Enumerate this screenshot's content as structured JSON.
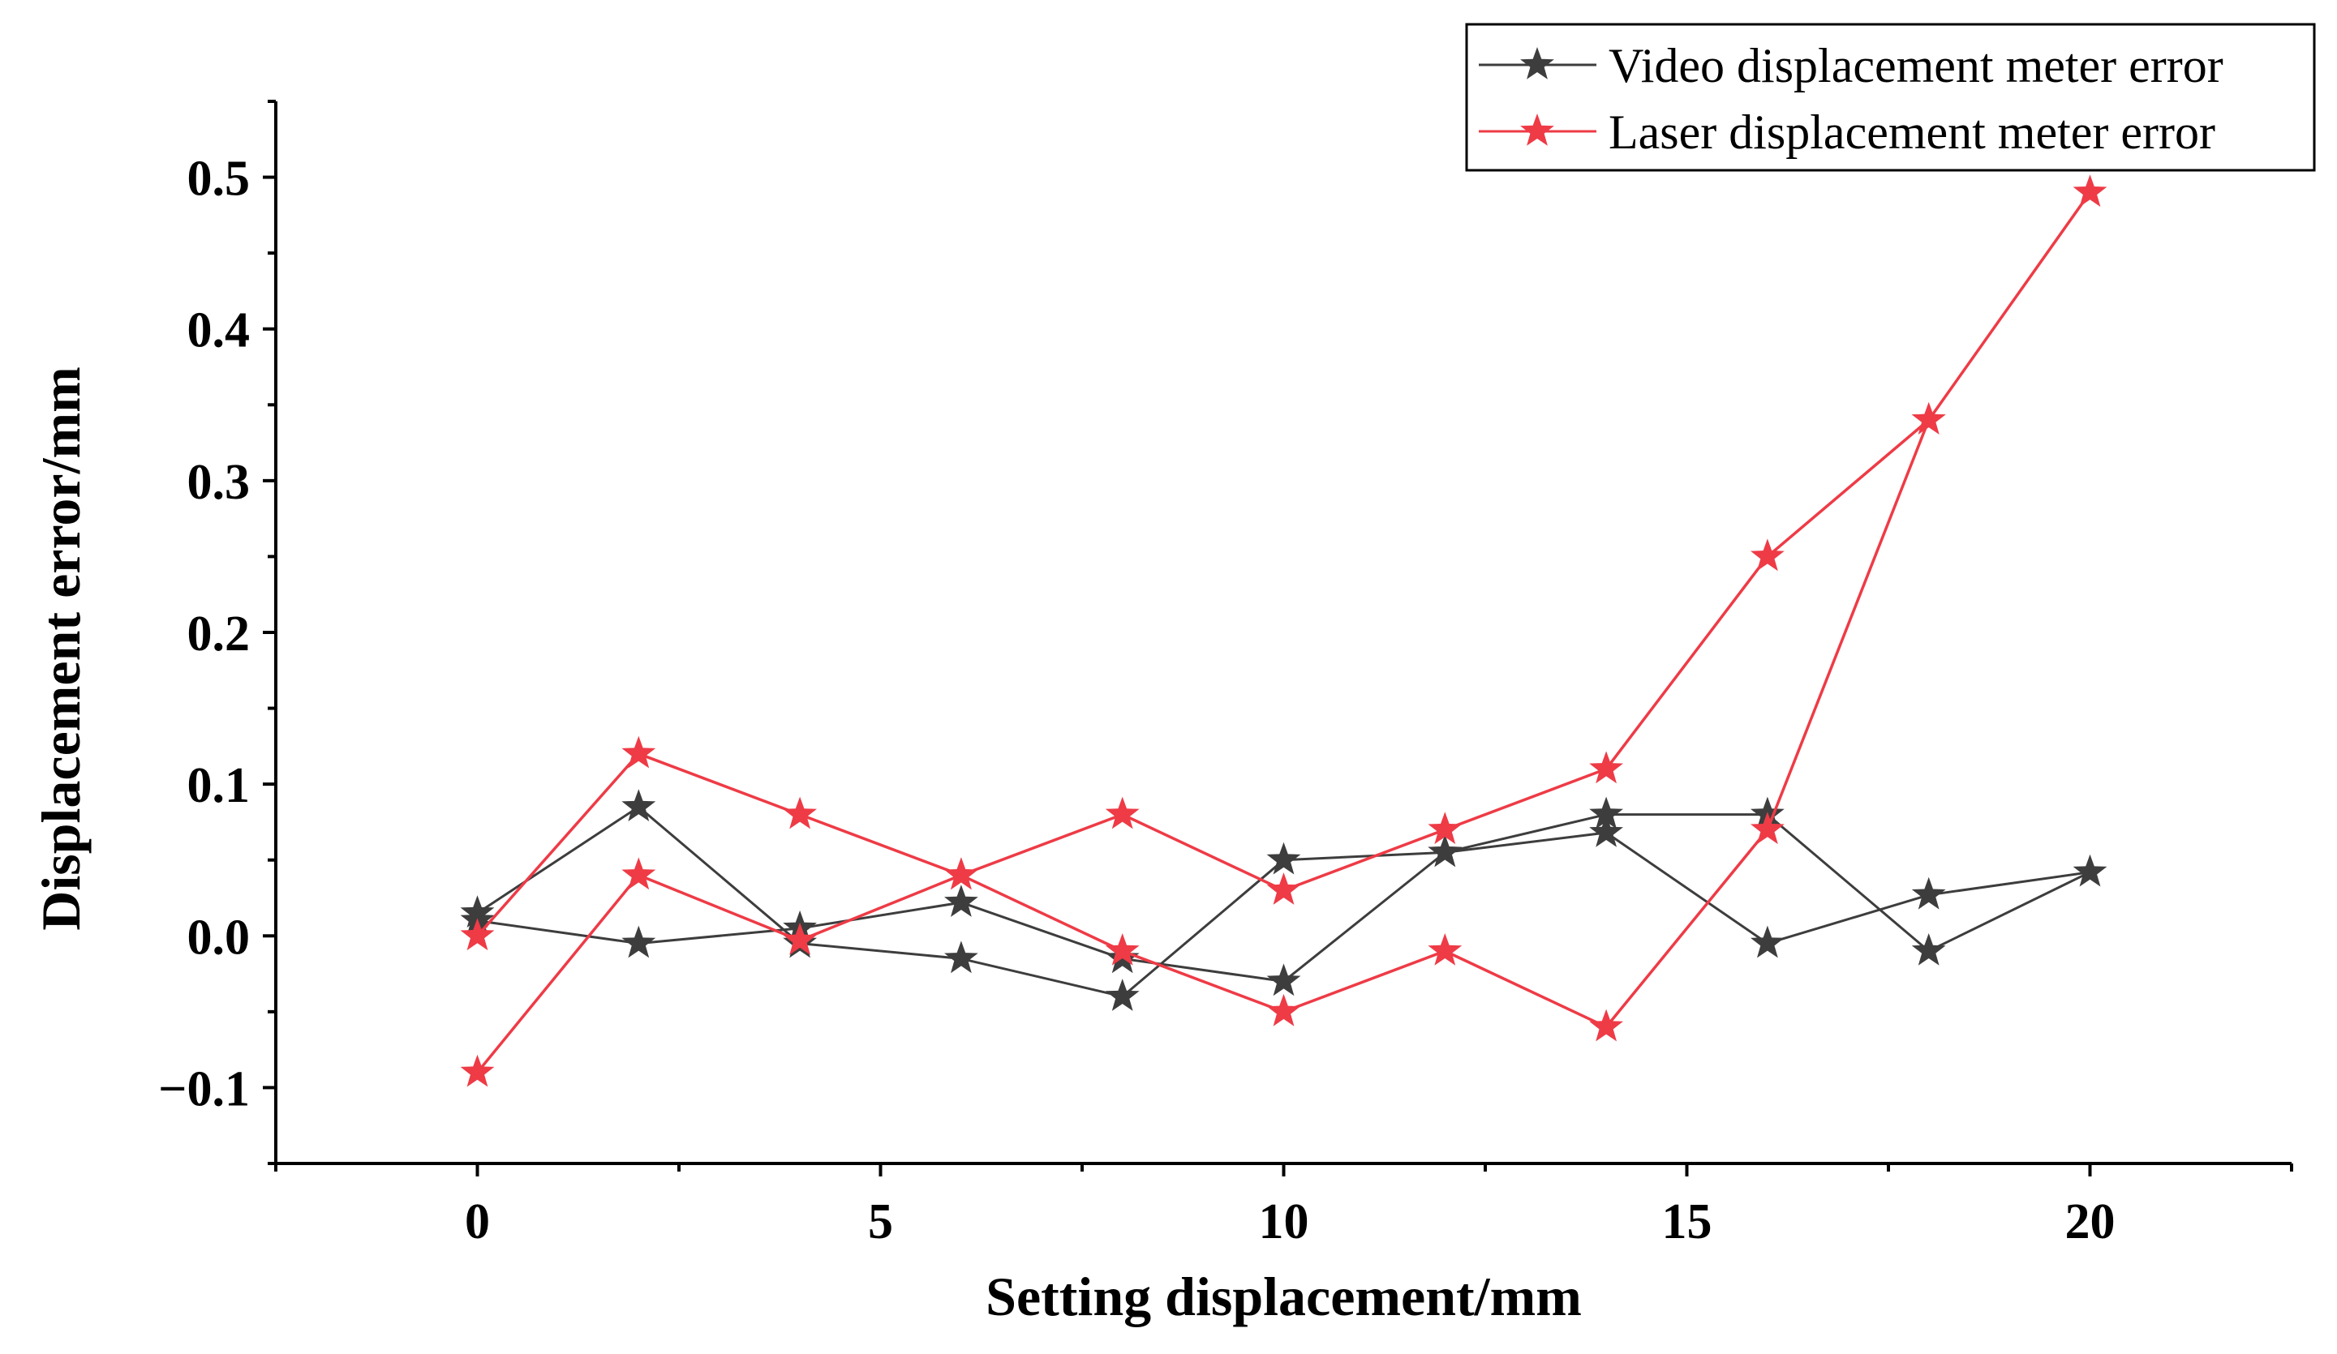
{
  "chart_data": {
    "type": "line",
    "xlabel": "Setting displacement/mm",
    "ylabel": "Displacement error/mm",
    "xlim": [
      -2.5,
      22.5
    ],
    "ylim": [
      -0.15,
      0.55
    ],
    "x_ticks": [
      0,
      5,
      10,
      15,
      20
    ],
    "x_tick_labels": [
      "0",
      "5",
      "10",
      "15",
      "20"
    ],
    "y_ticks": [
      -0.1,
      0.0,
      0.1,
      0.2,
      0.3,
      0.4,
      0.5
    ],
    "y_tick_labels": [
      "−0.1",
      "0.0",
      "0.1",
      "0.2",
      "0.3",
      "0.4",
      "0.5"
    ],
    "grid": false,
    "legend_position": "top-right",
    "series": [
      {
        "name": "Video displacement meter error",
        "color": "#3d3d3d",
        "marker": "star",
        "x": [
          0,
          2,
          4,
          6,
          8,
          10,
          12,
          14,
          16,
          18,
          20,
          18,
          16,
          14,
          12,
          10,
          8,
          6,
          4,
          2,
          0
        ],
        "y": [
          0.015,
          0.085,
          -0.005,
          -0.015,
          -0.04,
          0.05,
          0.055,
          0.08,
          0.08,
          -0.01,
          0.042,
          0.027,
          -0.005,
          0.068,
          0.055,
          -0.03,
          -0.015,
          0.022,
          0.005,
          -0.005,
          0.01
        ]
      },
      {
        "name": "Laser displacement meter error",
        "color": "#ee3b46",
        "marker": "star",
        "x": [
          0,
          2,
          4,
          6,
          8,
          10,
          12,
          14,
          16,
          18,
          20,
          18,
          16,
          14,
          12,
          10,
          8,
          6,
          4,
          2,
          0
        ],
        "y": [
          0.0,
          0.12,
          0.08,
          0.04,
          0.08,
          0.03,
          0.07,
          0.11,
          0.25,
          0.34,
          0.49,
          0.34,
          0.07,
          -0.06,
          -0.01,
          -0.05,
          -0.01,
          0.04,
          -0.003,
          0.04,
          -0.09
        ]
      }
    ]
  }
}
